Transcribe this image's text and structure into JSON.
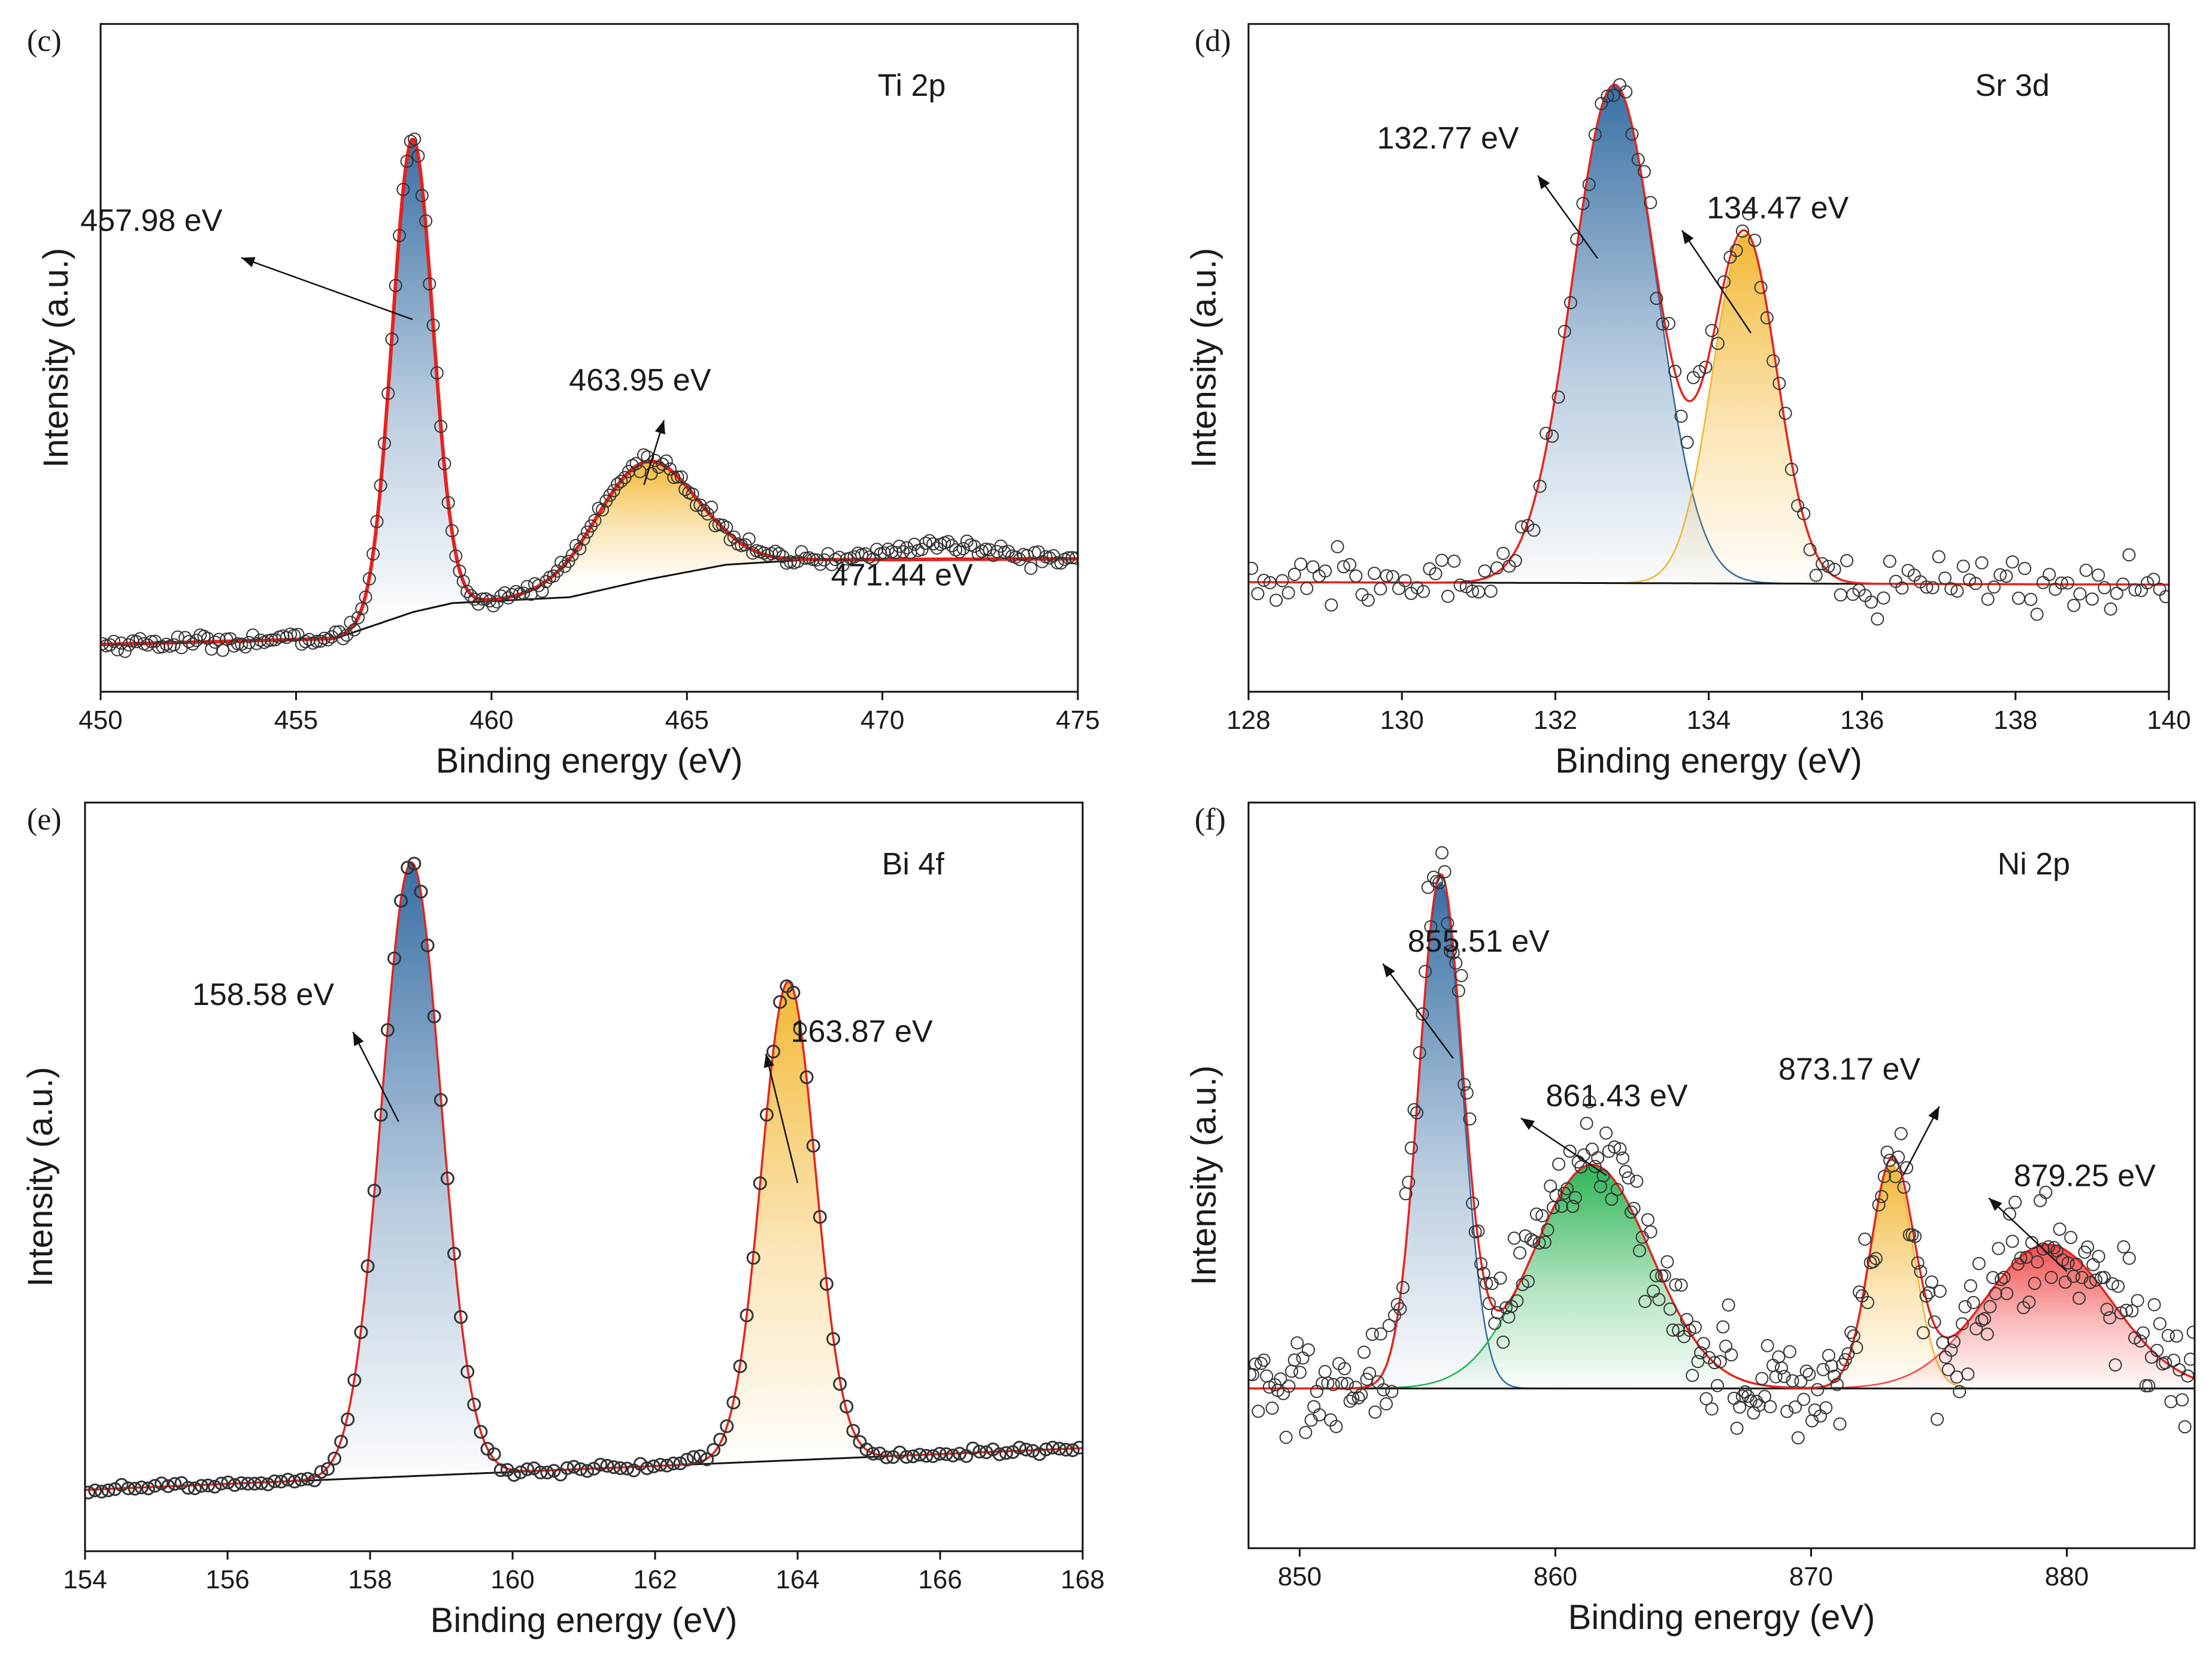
{
  "figure": {
    "panels": [
      "c",
      "d",
      "e",
      "f"
    ]
  },
  "chart_data": [
    {
      "id": "c",
      "type": "line",
      "panel_label": "(c)",
      "element_label": "Ti 2p",
      "xlabel": "Binding energy (eV)",
      "ylabel": "Intensity (a.u.)",
      "xlim": [
        450,
        475
      ],
      "xticks": [
        450,
        455,
        460,
        465,
        470,
        475
      ],
      "ylim": [
        -0.08,
        1.05
      ],
      "background": [
        [
          450,
          0.0
        ],
        [
          456,
          0.01
        ],
        [
          458,
          0.055
        ],
        [
          459,
          0.07
        ],
        [
          462,
          0.08
        ],
        [
          464,
          0.11
        ],
        [
          466,
          0.135
        ],
        [
          468,
          0.143
        ],
        [
          471,
          0.144
        ],
        [
          475,
          0.145
        ]
      ],
      "peaks": [
        {
          "center": 457.98,
          "amp": 0.8,
          "sigma": 0.52,
          "color": "#2e68a0",
          "label": "457.98 eV"
        },
        {
          "center": 463.95,
          "amp": 0.2,
          "sigma": 1.3,
          "color": "#f2b52c",
          "label": "463.95 eV"
        }
      ],
      "extra_peaks": [
        {
          "center": 471.44,
          "amp": 0.025,
          "sigma": 1.1
        }
      ],
      "annotations": [
        {
          "text": "457.98 eV",
          "x": 457.98,
          "y": 0.55,
          "tx": 451.3,
          "ty": 0.7,
          "dir": "left"
        },
        {
          "text": "463.95 eV",
          "x": 463.9,
          "y": 0.27,
          "tx": 463.8,
          "ty": 0.43,
          "dir": "up"
        },
        {
          "text": "471.44 eV",
          "x": 471.44,
          "y": 0.2,
          "tx": 470.5,
          "ty": 0.1,
          "dir": "none"
        }
      ]
    },
    {
      "id": "d",
      "type": "line",
      "panel_label": "(d)",
      "element_label": "Sr 3d",
      "xlabel": "Binding energy (eV)",
      "ylabel": "Intensity (a.u.)",
      "xlim": [
        128,
        140
      ],
      "xticks": [
        128,
        130,
        132,
        134,
        136,
        138,
        140
      ],
      "ylim": [
        -0.22,
        1.12
      ],
      "background": [
        [
          128,
          0.0
        ],
        [
          140,
          -0.005
        ]
      ],
      "peaks": [
        {
          "center": 132.77,
          "amp": 1.0,
          "sigma": 0.55,
          "color": "#2e68a0",
          "label": "132.77 eV"
        },
        {
          "center": 134.47,
          "amp": 0.7,
          "sigma": 0.42,
          "color": "#f2b52c",
          "label": "134.47 eV"
        }
      ],
      "extra_peaks": [],
      "annotations": [
        {
          "text": "132.77 eV",
          "x": 132.55,
          "y": 0.65,
          "tx": 130.6,
          "ty": 0.87,
          "dir": "left"
        },
        {
          "text": "134.47 eV",
          "x": 134.55,
          "y": 0.5,
          "tx": 134.9,
          "ty": 0.73,
          "dir": "right"
        }
      ]
    },
    {
      "id": "e",
      "type": "line",
      "panel_label": "(e)",
      "element_label": "Bi 4f",
      "xlabel": "Binding energy (eV)",
      "ylabel": "Intensity (a.u.)",
      "xlim": [
        154,
        168
      ],
      "xticks": [
        154,
        156,
        158,
        160,
        162,
        164,
        166,
        168
      ],
      "ylim": [
        -0.1,
        1.12
      ],
      "background": [
        [
          154,
          0.0
        ],
        [
          168,
          0.068
        ]
      ],
      "peaks": [
        {
          "center": 158.58,
          "amp": 1.0,
          "sigma": 0.42,
          "color": "#2e68a0",
          "label": "158.58 eV"
        },
        {
          "center": 163.87,
          "amp": 0.78,
          "sigma": 0.38,
          "color": "#f2b52c",
          "label": "163.87 eV"
        }
      ],
      "extra_peaks": [],
      "annotations": [
        {
          "text": "158.58 eV",
          "x": 158.4,
          "y": 0.6,
          "tx": 156.5,
          "ty": 0.79,
          "dir": "left"
        },
        {
          "text": "163.87 eV",
          "x": 164.0,
          "y": 0.5,
          "tx": 164.9,
          "ty": 0.73,
          "dir": "right"
        }
      ]
    },
    {
      "id": "f",
      "type": "line",
      "panel_label": "(f)",
      "element_label": "Ni 2p",
      "xlabel": "Binding energy (eV)",
      "ylabel": "Intensity (a.u.)",
      "xlim": [
        848,
        885
      ],
      "xticks": [
        850,
        860,
        870,
        880
      ],
      "ylim": [
        -0.3,
        1.1
      ],
      "background": [
        [
          848,
          0.0
        ],
        [
          885,
          0.0
        ]
      ],
      "peaks": [
        {
          "center": 855.51,
          "amp": 0.95,
          "sigma": 0.85,
          "color": "#2e68a0",
          "label": "855.51 eV"
        },
        {
          "center": 861.43,
          "amp": 0.42,
          "sigma": 2.3,
          "color": "#22b14c",
          "label": "861.43 eV"
        },
        {
          "center": 873.17,
          "amp": 0.42,
          "sigma": 0.85,
          "color": "#f2b52c",
          "label": "873.17 eV"
        },
        {
          "center": 879.25,
          "amp": 0.27,
          "sigma": 2.5,
          "color": "#f04545",
          "label": "879.25 eV"
        }
      ],
      "extra_peaks": [],
      "annotations": [
        {
          "text": "855.51 eV",
          "x": 856.0,
          "y": 0.62,
          "tx": 857.0,
          "ty": 0.82,
          "dir": "right"
        },
        {
          "text": "861.43 eV",
          "x": 862.0,
          "y": 0.4,
          "tx": 862.4,
          "ty": 0.53,
          "dir": "right"
        },
        {
          "text": "873.17 eV",
          "x": 873.6,
          "y": 0.4,
          "tx": 871.5,
          "ty": 0.58,
          "dir": "left"
        },
        {
          "text": "879.25 eV",
          "x": 880.0,
          "y": 0.22,
          "tx": 880.7,
          "ty": 0.38,
          "dir": "right"
        }
      ]
    }
  ]
}
